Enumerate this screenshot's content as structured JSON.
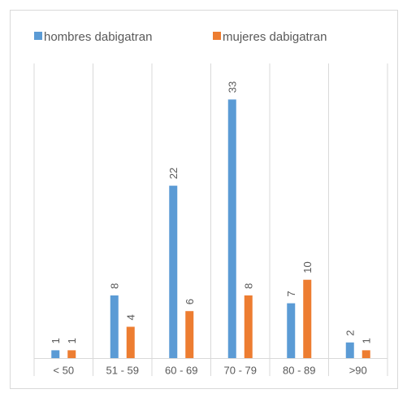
{
  "chart_data": {
    "type": "bar",
    "categories": [
      "<  50",
      "51 - 59",
      "60 - 69",
      "70 - 79",
      "80 - 89",
      ">90"
    ],
    "series": [
      {
        "name": "hombres dabigatran",
        "color": "#5b9bd5",
        "values": [
          1,
          8,
          22,
          33,
          7,
          2
        ]
      },
      {
        "name": "mujeres dabigatran",
        "color": "#ed7d31",
        "values": [
          1,
          4,
          6,
          8,
          10,
          1
        ]
      }
    ],
    "ylim": [
      0,
      35
    ],
    "legend": "top"
  }
}
